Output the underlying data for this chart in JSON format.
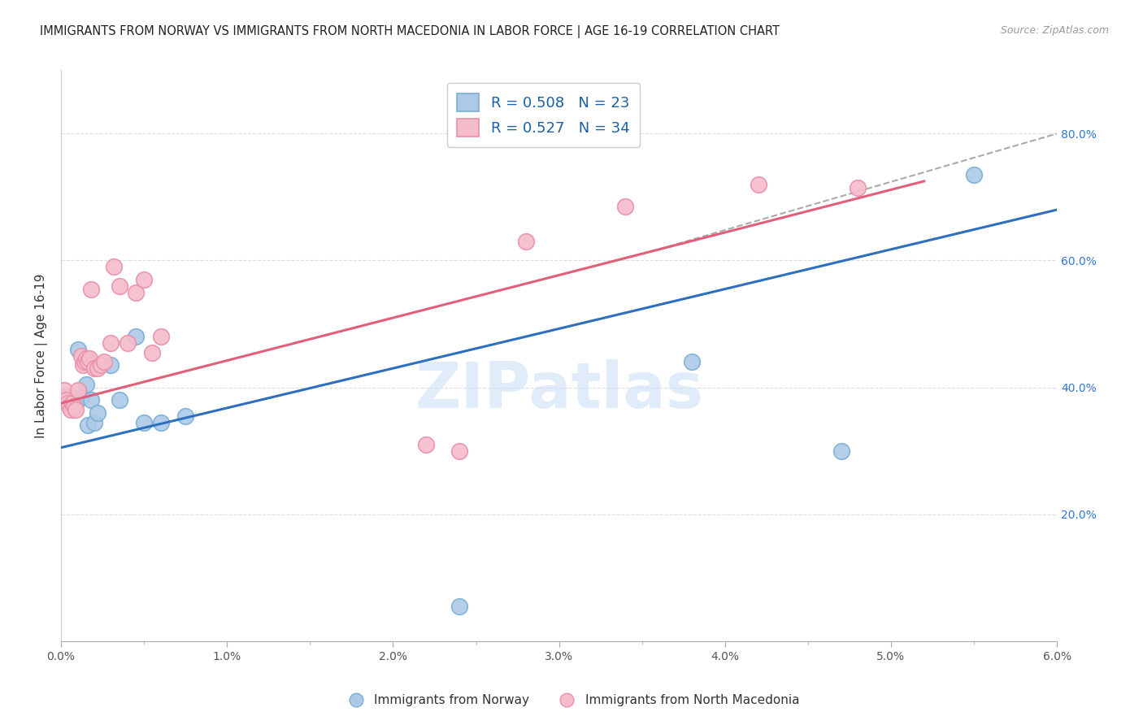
{
  "title": "IMMIGRANTS FROM NORWAY VS IMMIGRANTS FROM NORTH MACEDONIA IN LABOR FORCE | AGE 16-19 CORRELATION CHART",
  "source": "Source: ZipAtlas.com",
  "ylabel": "In Labor Force | Age 16-19",
  "xlim": [
    0.0,
    0.06
  ],
  "ylim": [
    0.0,
    0.9
  ],
  "y_ticks": [
    0.0,
    0.2,
    0.4,
    0.6,
    0.8
  ],
  "y_tick_labels": [
    "",
    "20.0%",
    "40.0%",
    "60.0%",
    "80.0%"
  ],
  "norway_color": "#adc9e8",
  "norway_edge": "#7aafd4",
  "norway_line_color": "#2e6fbe",
  "macedonia_color": "#f5bccb",
  "macedonia_edge": "#e890a8",
  "macedonia_line_color": "#e0607a",
  "norway_x": [
    0.0003,
    0.0005,
    0.0006,
    0.0007,
    0.0008,
    0.001,
    0.001,
    0.0012,
    0.0015,
    0.0016,
    0.0018,
    0.002,
    0.0022,
    0.003,
    0.0035,
    0.0045,
    0.005,
    0.006,
    0.0075,
    0.024,
    0.038,
    0.047,
    0.055
  ],
  "norway_y": [
    0.385,
    0.38,
    0.375,
    0.37,
    0.375,
    0.46,
    0.38,
    0.385,
    0.405,
    0.34,
    0.38,
    0.345,
    0.36,
    0.435,
    0.38,
    0.48,
    0.345,
    0.345,
    0.355,
    0.055,
    0.44,
    0.3,
    0.735
  ],
  "macedonia_x": [
    0.0002,
    0.0003,
    0.0004,
    0.0005,
    0.0006,
    0.0007,
    0.0008,
    0.0009,
    0.001,
    0.0012,
    0.0013,
    0.0014,
    0.0015,
    0.0016,
    0.0017,
    0.0018,
    0.002,
    0.0022,
    0.0024,
    0.0026,
    0.003,
    0.0032,
    0.0035,
    0.004,
    0.0045,
    0.005,
    0.0055,
    0.006,
    0.022,
    0.024,
    0.028,
    0.034,
    0.042,
    0.048
  ],
  "macedonia_y": [
    0.395,
    0.38,
    0.375,
    0.37,
    0.365,
    0.375,
    0.37,
    0.365,
    0.395,
    0.45,
    0.435,
    0.44,
    0.445,
    0.44,
    0.445,
    0.555,
    0.43,
    0.43,
    0.435,
    0.44,
    0.47,
    0.59,
    0.56,
    0.47,
    0.55,
    0.57,
    0.455,
    0.48,
    0.31,
    0.3,
    0.63,
    0.685,
    0.72,
    0.715
  ],
  "norway_line_x0": 0.0,
  "norway_line_x1": 0.06,
  "norway_line_y0": 0.305,
  "norway_line_y1": 0.68,
  "macedonia_line_x0": 0.0,
  "macedonia_line_x1": 0.052,
  "macedonia_line_y0": 0.375,
  "macedonia_line_y1": 0.725,
  "dash_line_x0": 0.035,
  "dash_line_x1": 0.06,
  "dash_line_y0": 0.61,
  "dash_line_y1": 0.8,
  "watermark": "ZIPatlas",
  "legend_norway_label": "R = 0.508   N = 23",
  "legend_macedonia_label": "R = 0.527   N = 34",
  "bottom_legend_norway": "Immigrants from Norway",
  "bottom_legend_macedonia": "Immigrants from North Macedonia",
  "background_color": "#ffffff",
  "grid_color": "#dddddd",
  "title_fontsize": 10.5,
  "axis_label_fontsize": 11,
  "legend_fontsize": 13
}
